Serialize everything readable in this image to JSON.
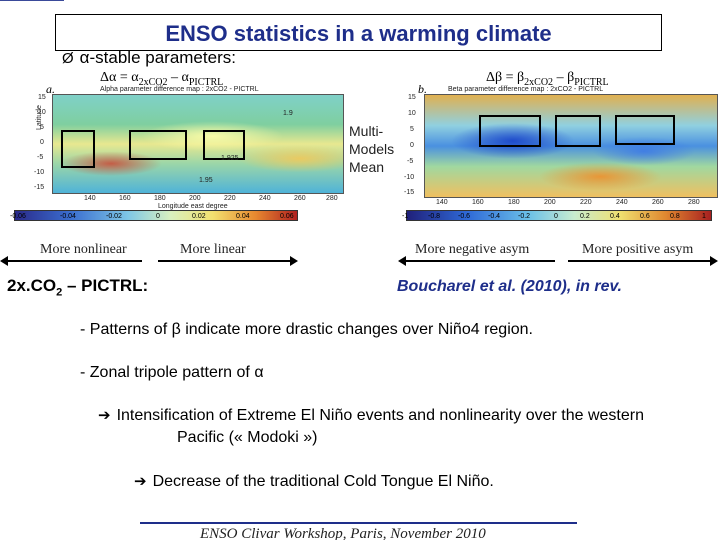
{
  "title": "ENSO statistics in a warming climate",
  "bullet": {
    "arrow": "Ø",
    "text": "α-stable parameters:"
  },
  "formulas": {
    "alpha": {
      "lhs": "Δα = α",
      "sub1": "2xCO2",
      "mid": " – α",
      "sub2": "PICTRL"
    },
    "beta": {
      "lhs": "Δβ = β",
      "sub1": "2xCO2",
      "mid": " – β",
      "sub2": "PICTRL"
    }
  },
  "maps": {
    "alpha": {
      "letter": "a.",
      "caption": "Alpha parameter difference map : 2xCO2 - PICTRL",
      "xlabel": "Longitude east degree"
    },
    "beta": {
      "letter": "b.",
      "caption": "Beta parameter difference map : 2xCO2 - PICTRL"
    },
    "lon_ticks": [
      "140",
      "160",
      "180",
      "200",
      "220",
      "240",
      "260",
      "280"
    ],
    "lat_ticks": [
      "15",
      "10",
      "5",
      "0",
      "-5",
      "-10",
      "-15"
    ],
    "ylabel": "Latitude",
    "contours_alpha": [
      "1.925",
      "1.95",
      "1.9"
    ]
  },
  "colorbars": {
    "alpha": [
      "-0.06",
      "-0.04",
      "-0.02",
      "0",
      "0.02",
      "0.04",
      "0.06"
    ],
    "beta": [
      "-1",
      "-0.8",
      "-0.6",
      "-0.4",
      "-0.2",
      "0",
      "0.2",
      "0.4",
      "0.6",
      "0.8",
      "1"
    ]
  },
  "multi_models": {
    "line1": "Multi-",
    "line2": "Models",
    "line3": "Mean"
  },
  "directions": {
    "more_nonlinear": "More nonlinear",
    "more_linear": "More linear",
    "more_negative": "More negative asym",
    "more_positive": "More positive asym"
  },
  "experiment": {
    "pre": "2x.CO",
    "sub": "2",
    "post": " – PICTRL:"
  },
  "reference": "Boucharel et al. (2010), in rev.",
  "lines": {
    "l1": "- Patterns of β indicate more drastic changes over Niño4 region.",
    "l2": "-   Zonal tripole pattern of α",
    "l3a": "Intensification of Extreme El Niño events and nonlinearity over the western",
    "l3b": "Pacific (« Modoki »)",
    "l4": "Decrease of the traditional Cold Tongue El Niño.",
    "arrow_icon": "➔"
  },
  "footer": "ENSO Clivar Workshop, Paris, November 2010"
}
